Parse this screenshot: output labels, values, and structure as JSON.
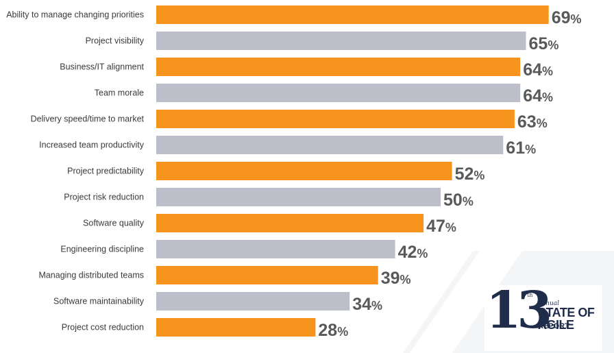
{
  "colors": {
    "orange": "#f7941d",
    "gray": "#bcbfca",
    "value_text": "#58595b",
    "logo_navy": "#1f2d4b"
  },
  "chart_data": {
    "type": "bar",
    "orientation": "horizontal",
    "xlim": [
      0,
      100
    ],
    "value_suffix": "%",
    "bar_color_pattern": [
      "orange",
      "gray"
    ],
    "categories": [
      "Ability to manage changing priorities",
      "Project visibility",
      "Business/IT alignment",
      "Team morale",
      "Delivery speed/time to market",
      "Increased team productivity",
      "Project predictability",
      "Project risk reduction",
      "Software quality",
      "Engineering discipline",
      "Managing distributed teams",
      "Software maintainability",
      "Project cost reduction"
    ],
    "values": [
      69,
      65,
      64,
      64,
      63,
      61,
      52,
      50,
      47,
      42,
      39,
      34,
      28
    ]
  },
  "logo": {
    "number": "13",
    "ordinal": "th",
    "annual": "annual",
    "line1": "STATE OF",
    "line2": "AGILE",
    "line3": "REPORT"
  }
}
